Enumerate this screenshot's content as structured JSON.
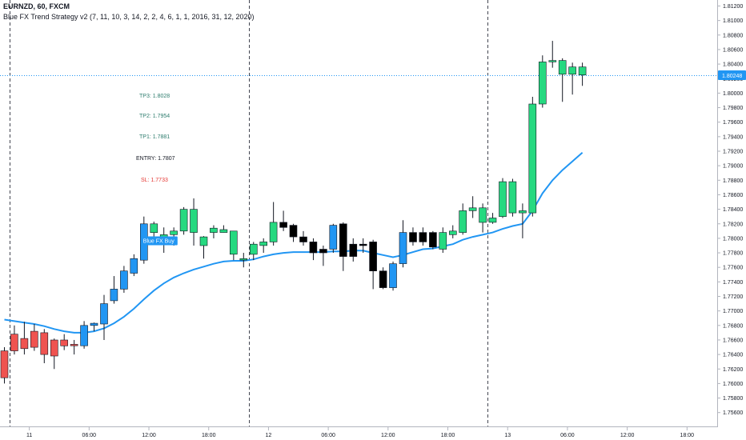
{
  "header": {
    "title": "EURNZD, 60, FXCM",
    "indicator": "Blue FX Trend Strategy v2 (7, 11, 10, 3, 14, 2, 2, 4, 6, 1, 1, 2016, 31, 12, 2020)"
  },
  "levels": [
    {
      "label": "TP3: 1.8028",
      "color": "#2e7d6e"
    },
    {
      "label": "TP2: 1.7954",
      "color": "#2e7d6e"
    },
    {
      "label": "TP1: 1.7881",
      "color": "#2e7d6e"
    },
    {
      "label": "ENTRY: 1.7807",
      "color": "#131722"
    },
    {
      "label": "SL: 1.7733",
      "color": "#e53935"
    }
  ],
  "signal": {
    "label": "Blue FX Buy"
  },
  "colors": {
    "bull": "#26d980",
    "bear": "#ef5350",
    "buy_bar": "#2196f3",
    "neutral": "#000000",
    "ma": "#2196f3",
    "price_line": "#2196f3"
  },
  "chart_data": {
    "type": "candlestick",
    "symbol": "EURNZD",
    "timeframe": "60",
    "source": "FXCM",
    "ylim": [
      1.755,
      1.813
    ],
    "y_ticks": [
      "1.75600",
      "1.75800",
      "1.76000",
      "1.76200",
      "1.76400",
      "1.76600",
      "1.76800",
      "1.77000",
      "1.77200",
      "1.77400",
      "1.77600",
      "1.77800",
      "1.78000",
      "1.78200",
      "1.78400",
      "1.78600",
      "1.78800",
      "1.79000",
      "1.79200",
      "1.79400",
      "1.79600",
      "1.79800",
      "1.80000",
      "1.80200",
      "1.80400",
      "1.80600",
      "1.80800",
      "1.81000",
      "1.81200"
    ],
    "x_ticks": [
      {
        "label": "11",
        "bar": 2.5
      },
      {
        "label": "06:00",
        "bar": 8.5
      },
      {
        "label": "12:00",
        "bar": 14.5
      },
      {
        "label": "18:00",
        "bar": 20.5
      },
      {
        "label": "12",
        "bar": 26.5
      },
      {
        "label": "06:00",
        "bar": 32.5
      },
      {
        "label": "12:00",
        "bar": 38.5
      },
      {
        "label": "18:00",
        "bar": 44.5
      },
      {
        "label": "13",
        "bar": 50.5
      },
      {
        "label": "06:00",
        "bar": 56.5
      },
      {
        "label": "12:00",
        "bar": 62.5
      },
      {
        "label": "18:00",
        "bar": 68.5
      }
    ],
    "session_breaks": [
      0.5,
      24.5,
      48.5
    ],
    "current_price": "1.80248",
    "current_value": 1.80248,
    "candles": [
      {
        "o": 1.7645,
        "h": 1.765,
        "l": 1.76,
        "c": 1.7608,
        "k": "bear"
      },
      {
        "o": 1.7668,
        "h": 1.768,
        "l": 1.764,
        "c": 1.7645,
        "k": "bear"
      },
      {
        "o": 1.7662,
        "h": 1.7685,
        "l": 1.764,
        "c": 1.7648,
        "k": "bear"
      },
      {
        "o": 1.7672,
        "h": 1.7682,
        "l": 1.7645,
        "c": 1.765,
        "k": "bear"
      },
      {
        "o": 1.767,
        "h": 1.7675,
        "l": 1.7628,
        "c": 1.764,
        "k": "bear"
      },
      {
        "o": 1.766,
        "h": 1.7662,
        "l": 1.762,
        "c": 1.7638,
        "k": "bear"
      },
      {
        "o": 1.766,
        "h": 1.7668,
        "l": 1.7646,
        "c": 1.7652,
        "k": "bear"
      },
      {
        "o": 1.7652,
        "h": 1.766,
        "l": 1.764,
        "c": 1.7654,
        "k": "bear"
      },
      {
        "o": 1.7652,
        "h": 1.7686,
        "l": 1.7648,
        "c": 1.768,
        "k": "buy"
      },
      {
        "o": 1.768,
        "h": 1.7684,
        "l": 1.7672,
        "c": 1.7683,
        "k": "buy"
      },
      {
        "o": 1.7682,
        "h": 1.7722,
        "l": 1.766,
        "c": 1.771,
        "k": "buy"
      },
      {
        "o": 1.7714,
        "h": 1.7748,
        "l": 1.771,
        "c": 1.773,
        "k": "buy"
      },
      {
        "o": 1.773,
        "h": 1.7762,
        "l": 1.7725,
        "c": 1.7755,
        "k": "buy"
      },
      {
        "o": 1.7752,
        "h": 1.7778,
        "l": 1.7748,
        "c": 1.7772,
        "k": "buy"
      },
      {
        "o": 1.777,
        "h": 1.783,
        "l": 1.7765,
        "c": 1.782,
        "k": "buy"
      },
      {
        "o": 1.7808,
        "h": 1.7823,
        "l": 1.7798,
        "c": 1.782,
        "k": "bull"
      },
      {
        "o": 1.7805,
        "h": 1.7815,
        "l": 1.778,
        "c": 1.7795,
        "k": "bull"
      },
      {
        "o": 1.7805,
        "h": 1.7815,
        "l": 1.779,
        "c": 1.781,
        "k": "bull"
      },
      {
        "o": 1.781,
        "h": 1.7843,
        "l": 1.7805,
        "c": 1.784,
        "k": "bull"
      },
      {
        "o": 1.7808,
        "h": 1.7855,
        "l": 1.779,
        "c": 1.784,
        "k": "bull"
      },
      {
        "o": 1.7802,
        "h": 1.7803,
        "l": 1.7772,
        "c": 1.779,
        "k": "bull"
      },
      {
        "o": 1.7808,
        "h": 1.7818,
        "l": 1.78,
        "c": 1.7814,
        "k": "bull"
      },
      {
        "o": 1.7812,
        "h": 1.7818,
        "l": 1.7808,
        "c": 1.7808,
        "k": "bull"
      },
      {
        "o": 1.781,
        "h": 1.781,
        "l": 1.777,
        "c": 1.7778,
        "k": "bull"
      },
      {
        "o": 1.777,
        "h": 1.778,
        "l": 1.776,
        "c": 1.7772,
        "k": "bull"
      },
      {
        "o": 1.7778,
        "h": 1.7795,
        "l": 1.777,
        "c": 1.7792,
        "k": "bull"
      },
      {
        "o": 1.779,
        "h": 1.78,
        "l": 1.778,
        "c": 1.7795,
        "k": "bull"
      },
      {
        "o": 1.7795,
        "h": 1.785,
        "l": 1.779,
        "c": 1.7822,
        "k": "bull"
      },
      {
        "o": 1.7822,
        "h": 1.7838,
        "l": 1.781,
        "c": 1.7815,
        "k": "neutral"
      },
      {
        "o": 1.7818,
        "h": 1.782,
        "l": 1.7795,
        "c": 1.7802,
        "k": "neutral"
      },
      {
        "o": 1.7802,
        "h": 1.781,
        "l": 1.779,
        "c": 1.7795,
        "k": "neutral"
      },
      {
        "o": 1.7795,
        "h": 1.78,
        "l": 1.777,
        "c": 1.778,
        "k": "neutral"
      },
      {
        "o": 1.778,
        "h": 1.779,
        "l": 1.7762,
        "c": 1.7785,
        "k": "neutral"
      },
      {
        "o": 1.7785,
        "h": 1.782,
        "l": 1.778,
        "c": 1.7818,
        "k": "buy"
      },
      {
        "o": 1.782,
        "h": 1.7822,
        "l": 1.7755,
        "c": 1.7775,
        "k": "neutral"
      },
      {
        "o": 1.7775,
        "h": 1.78,
        "l": 1.7768,
        "c": 1.7792,
        "k": "neutral"
      },
      {
        "o": 1.7792,
        "h": 1.78,
        "l": 1.778,
        "c": 1.779,
        "k": "neutral"
      },
      {
        "o": 1.7795,
        "h": 1.7798,
        "l": 1.773,
        "c": 1.7755,
        "k": "neutral"
      },
      {
        "o": 1.7755,
        "h": 1.776,
        "l": 1.773,
        "c": 1.7732,
        "k": "neutral"
      },
      {
        "o": 1.7732,
        "h": 1.7768,
        "l": 1.7728,
        "c": 1.7765,
        "k": "buy"
      },
      {
        "o": 1.7765,
        "h": 1.7825,
        "l": 1.776,
        "c": 1.7808,
        "k": "buy"
      },
      {
        "o": 1.7808,
        "h": 1.7815,
        "l": 1.779,
        "c": 1.7795,
        "k": "neutral"
      },
      {
        "o": 1.7795,
        "h": 1.7815,
        "l": 1.779,
        "c": 1.7808,
        "k": "neutral"
      },
      {
        "o": 1.7808,
        "h": 1.781,
        "l": 1.7785,
        "c": 1.7788,
        "k": "neutral"
      },
      {
        "o": 1.7785,
        "h": 1.7815,
        "l": 1.778,
        "c": 1.7808,
        "k": "bull"
      },
      {
        "o": 1.7805,
        "h": 1.7818,
        "l": 1.78,
        "c": 1.781,
        "k": "bull"
      },
      {
        "o": 1.7808,
        "h": 1.7848,
        "l": 1.7805,
        "c": 1.7838,
        "k": "bull"
      },
      {
        "o": 1.7838,
        "h": 1.7858,
        "l": 1.7828,
        "c": 1.7842,
        "k": "bull"
      },
      {
        "o": 1.7822,
        "h": 1.7848,
        "l": 1.7808,
        "c": 1.7842,
        "k": "bull"
      },
      {
        "o": 1.7822,
        "h": 1.7835,
        "l": 1.782,
        "c": 1.7828,
        "k": "bull"
      },
      {
        "o": 1.783,
        "h": 1.7883,
        "l": 1.7828,
        "c": 1.7878,
        "k": "bull"
      },
      {
        "o": 1.7835,
        "h": 1.7882,
        "l": 1.783,
        "c": 1.7878,
        "k": "bull"
      },
      {
        "o": 1.7835,
        "h": 1.7848,
        "l": 1.78,
        "c": 1.7838,
        "k": "bull"
      },
      {
        "o": 1.7835,
        "h": 1.7995,
        "l": 1.783,
        "c": 1.7985,
        "k": "bull"
      },
      {
        "o": 1.7985,
        "h": 1.8052,
        "l": 1.798,
        "c": 1.8043,
        "k": "bull"
      },
      {
        "o": 1.8043,
        "h": 1.8072,
        "l": 1.8035,
        "c": 1.8045,
        "k": "bull"
      },
      {
        "o": 1.8026,
        "h": 1.8048,
        "l": 1.7988,
        "c": 1.8045,
        "k": "bull"
      },
      {
        "o": 1.8026,
        "h": 1.8042,
        "l": 1.7998,
        "c": 1.8036,
        "k": "bull"
      },
      {
        "o": 1.8025,
        "h": 1.8042,
        "l": 1.801,
        "c": 1.8036,
        "k": "bull"
      }
    ],
    "ma": [
      1.7688,
      1.7686,
      1.7684,
      1.7682,
      1.7679,
      1.7675,
      1.7672,
      1.767,
      1.767,
      1.7672,
      1.7676,
      1.7683,
      1.7692,
      1.7703,
      1.7716,
      1.7728,
      1.7738,
      1.7746,
      1.7752,
      1.7757,
      1.7761,
      1.7765,
      1.7768,
      1.7769,
      1.7769,
      1.7771,
      1.7775,
      1.7778,
      1.778,
      1.7781,
      1.7781,
      1.7781,
      1.7781,
      1.7782,
      1.7782,
      1.7783,
      1.7783,
      1.778,
      1.7777,
      1.7774,
      1.7777,
      1.7781,
      1.7785,
      1.7786,
      1.7789,
      1.7792,
      1.7798,
      1.7802,
      1.7805,
      1.7808,
      1.7813,
      1.7817,
      1.782,
      1.7838,
      1.7862,
      1.788,
      1.7894,
      1.7906,
      1.7918
    ]
  }
}
